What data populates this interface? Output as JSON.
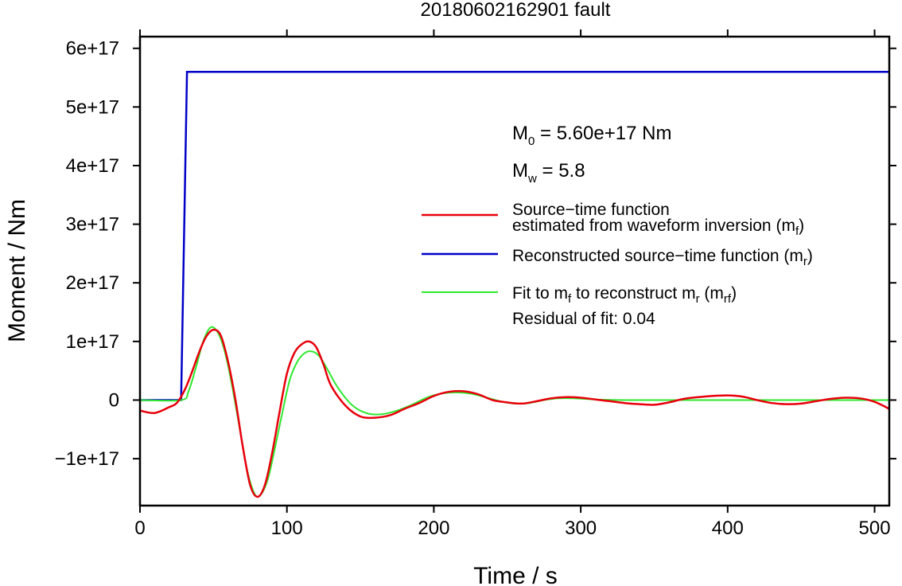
{
  "chart_data": {
    "type": "line",
    "title": "20180602162901 fault",
    "xlabel": "Time / s",
    "ylabel": "Moment / Nm",
    "xlim": [
      0,
      510
    ],
    "ylim": [
      -1.8e+17,
      6.2e+17
    ],
    "grid": false,
    "x_ticks": [
      {
        "value": 0,
        "label": "0"
      },
      {
        "value": 100,
        "label": "100"
      },
      {
        "value": 200,
        "label": "200"
      },
      {
        "value": 300,
        "label": "300"
      },
      {
        "value": 400,
        "label": "400"
      },
      {
        "value": 500,
        "label": "500"
      }
    ],
    "y_ticks": [
      {
        "value": -1e+17,
        "label": "−1e+17"
      },
      {
        "value": 0,
        "label": "0"
      },
      {
        "value": 1e+17,
        "label": "1e+17"
      },
      {
        "value": 2e+17,
        "label": "2e+17"
      },
      {
        "value": 3e+17,
        "label": "3e+17"
      },
      {
        "value": 4e+17,
        "label": "4e+17"
      },
      {
        "value": 5e+17,
        "label": "5e+17"
      },
      {
        "value": 6e+17,
        "label": "6e+17"
      }
    ],
    "legend_placement": "right",
    "series": [
      {
        "key": "mf",
        "color": "#e8000b",
        "points": [
          [
            0,
            -1.8e+16
          ],
          [
            10,
            -2.2e+16
          ],
          [
            20,
            -1.2e+16
          ],
          [
            25,
            -5000000000000000.0
          ],
          [
            30,
            1.5e+16
          ],
          [
            35,
            4.5e+16
          ],
          [
            40,
            8e+16
          ],
          [
            45,
            1.08e+17
          ],
          [
            50,
            1.2e+17
          ],
          [
            55,
            1.1e+17
          ],
          [
            60,
            6.5e+16
          ],
          [
            65,
            0
          ],
          [
            70,
            -8e+16
          ],
          [
            75,
            -1.45e+17
          ],
          [
            80,
            -1.65e+17
          ],
          [
            85,
            -1.45e+17
          ],
          [
            90,
            -9e+16
          ],
          [
            95,
            -2e+16
          ],
          [
            100,
            4.5e+16
          ],
          [
            105,
            8e+16
          ],
          [
            110,
            9.5e+16
          ],
          [
            115,
            1e+17
          ],
          [
            120,
            9e+16
          ],
          [
            125,
            6e+16
          ],
          [
            130,
            2.5e+16
          ],
          [
            140,
            -1e+16
          ],
          [
            150,
            -2.8e+16
          ],
          [
            160,
            -3e+16
          ],
          [
            170,
            -2.6e+16
          ],
          [
            180,
            -1.5e+16
          ],
          [
            190,
            -5000000000000000.0
          ],
          [
            200,
            7000000000000000.0
          ],
          [
            210,
            1.4e+16
          ],
          [
            220,
            1.5e+16
          ],
          [
            230,
            1e+16
          ],
          [
            240,
            0
          ],
          [
            250,
            -4000000000000000.0
          ],
          [
            260,
            -6000000000000000.0
          ],
          [
            270,
            -2000000000000000.0
          ],
          [
            280,
            3000000000000000.0
          ],
          [
            290,
            5000000000000000.0
          ],
          [
            300,
            4000000000000000.0
          ],
          [
            310,
            1000000000000000.0
          ],
          [
            320,
            -2000000000000000.0
          ],
          [
            330,
            -5000000000000000.0
          ],
          [
            340,
            -7000000000000000.0
          ],
          [
            350,
            -8000000000000000.0
          ],
          [
            360,
            -4000000000000000.0
          ],
          [
            370,
            2000000000000000.0
          ],
          [
            380,
            5000000000000000.0
          ],
          [
            390,
            7000000000000000.0
          ],
          [
            400,
            8000000000000000.0
          ],
          [
            410,
            6000000000000000.0
          ],
          [
            420,
            0
          ],
          [
            430,
            -5000000000000000.0
          ],
          [
            440,
            -7000000000000000.0
          ],
          [
            450,
            -6000000000000000.0
          ],
          [
            460,
            -2000000000000000.0
          ],
          [
            470,
            2000000000000000.0
          ],
          [
            480,
            4000000000000000.0
          ],
          [
            490,
            3000000000000000.0
          ],
          [
            500,
            -3000000000000000.0
          ],
          [
            510,
            -1.5e+16
          ]
        ]
      },
      {
        "key": "mr",
        "color": "#0000c8",
        "points": [
          [
            0,
            0
          ],
          [
            28,
            0
          ],
          [
            32,
            5.6e+17
          ],
          [
            510,
            5.6e+17
          ]
        ]
      },
      {
        "key": "mrf",
        "color": "#2ee82e",
        "points": [
          [
            0,
            0
          ],
          [
            28,
            0
          ],
          [
            33,
            1.5e+16
          ],
          [
            38,
            5.5e+16
          ],
          [
            43,
            1e+17
          ],
          [
            48,
            1.24e+17
          ],
          [
            53,
            1.15e+17
          ],
          [
            58,
            8e+16
          ],
          [
            63,
            2e+16
          ],
          [
            68,
            -5e+16
          ],
          [
            73,
            -1.2e+17
          ],
          [
            78,
            -1.6e+17
          ],
          [
            82,
            -1.62e+17
          ],
          [
            87,
            -1.35e+17
          ],
          [
            92,
            -8e+16
          ],
          [
            97,
            -2e+16
          ],
          [
            102,
            3.5e+16
          ],
          [
            107,
            6.5e+16
          ],
          [
            112,
            8e+16
          ],
          [
            117,
            8.3e+16
          ],
          [
            122,
            7.5e+16
          ],
          [
            127,
            5.5e+16
          ],
          [
            135,
            2e+16
          ],
          [
            145,
            -1e+16
          ],
          [
            155,
            -2.3e+16
          ],
          [
            165,
            -2.4e+16
          ],
          [
            175,
            -1.8e+16
          ],
          [
            185,
            -8000000000000000.0
          ],
          [
            195,
            4000000000000000.0
          ],
          [
            205,
            1.1e+16
          ],
          [
            215,
            1.3e+16
          ],
          [
            225,
            1.1e+16
          ],
          [
            235,
            5000000000000000.0
          ],
          [
            245,
            -2000000000000000.0
          ],
          [
            255,
            -6000000000000000.0
          ],
          [
            265,
            -5000000000000000.0
          ],
          [
            275,
            0
          ],
          [
            285,
            3000000000000000.0
          ],
          [
            295,
            3000000000000000.0
          ],
          [
            310,
            1000000000000000.0
          ],
          [
            330,
            0
          ],
          [
            360,
            0
          ],
          [
            400,
            0
          ],
          [
            450,
            0
          ],
          [
            510,
            0
          ]
        ]
      }
    ]
  },
  "annotations": {
    "m0": {
      "sym": "M",
      "sub": "0",
      "text": " = 5.60e+17 Nm"
    },
    "mw": {
      "sym": "M",
      "sub": "w",
      "text": " = 5.8"
    }
  },
  "legend": [
    {
      "series": "mf",
      "lines": [
        [
          "Source−time function"
        ],
        [
          "estimated from waveform inversion (m",
          "f",
          ")"
        ]
      ]
    },
    {
      "series": "mr",
      "lines": [
        [
          "Reconstructed source−time function (m",
          "r",
          ")"
        ]
      ]
    },
    {
      "series": "mrf",
      "lines": [
        [
          "Fit to m",
          "f",
          " to reconstruct m",
          "r",
          " (m",
          "rf",
          ")"
        ]
      ]
    }
  ],
  "residual": "Residual of fit: 0.04"
}
